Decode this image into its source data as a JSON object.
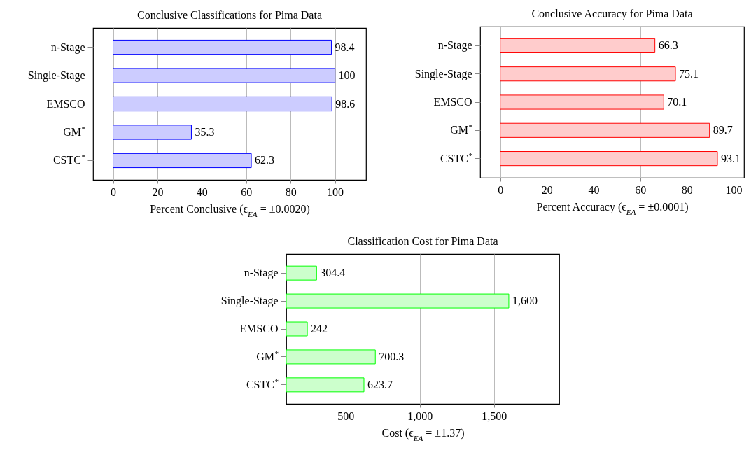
{
  "chart_data": [
    {
      "type": "bar",
      "orientation": "horizontal",
      "title": "Conclusive Classifications for Pima Data",
      "xlabel": "Percent Conclusive (ϵ$_{EA}$ = ±0.0020)",
      "categories": [
        "n-Stage",
        "Single-Stage",
        "EMSCO",
        "GM$^{*}$",
        "CSTC$^{*}$"
      ],
      "values": [
        98.4,
        100,
        98.6,
        35.3,
        62.3
      ],
      "color": "#ccccff",
      "xlim": [
        -9,
        114
      ],
      "xticks": [
        0,
        20,
        40,
        60,
        80,
        100
      ],
      "grid": "x",
      "data_labels": true
    },
    {
      "type": "bar",
      "orientation": "horizontal",
      "title": "Conclusive Accuracy for Pima Data",
      "xlabel": "Percent Accuracy (ϵ$_{EA}$ = ±0.0001)",
      "categories": [
        "n-Stage",
        "Single-Stage",
        "EMSCO",
        "GM$^{*}$",
        "CSTC$^{*}$"
      ],
      "values": [
        66.3,
        75.1,
        70.1,
        89.7,
        93.1
      ],
      "color": "#ffcccc",
      "xlim": [
        -8.6,
        104.5
      ],
      "xticks": [
        0,
        20,
        40,
        60,
        80,
        100
      ],
      "grid": "x",
      "data_labels": true
    },
    {
      "type": "bar",
      "orientation": "horizontal",
      "title": "Classification Cost for Pima Data",
      "xlabel": "Cost (ϵ$_{EA}$ = ±1.37)",
      "categories": [
        "n-Stage",
        "Single-Stage",
        "EMSCO",
        "GM$^{*}$",
        "CSTC$^{*}$"
      ],
      "values": [
        304.4,
        1600,
        242,
        700.3,
        623.7
      ],
      "value_labels": [
        "304.4",
        "1,600",
        "242",
        "700.3",
        "623.7"
      ],
      "color": "#ccffcc",
      "xlim": [
        100,
        1940
      ],
      "xticks": [
        500,
        {
          "value": 1000,
          "label": "1,000"
        },
        {
          "value": 1500,
          "label": "1,500"
        }
      ],
      "grid": "x"
    }
  ]
}
